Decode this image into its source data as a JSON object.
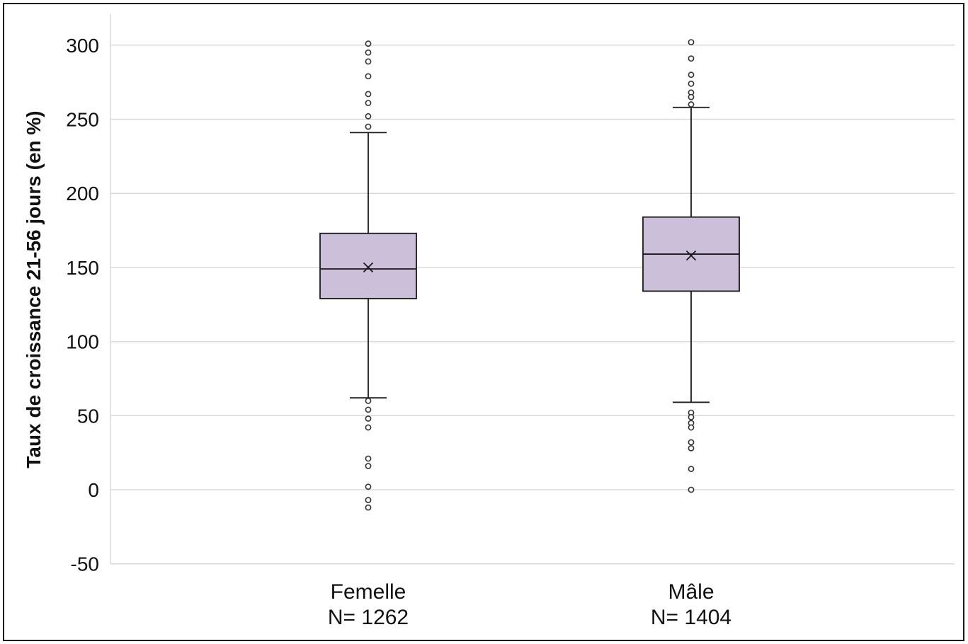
{
  "chart_data": {
    "type": "boxplot",
    "title": "",
    "ylabel": "Taux de croissance 21-56 jours (en %)",
    "xlabel": "",
    "ylim": [
      -50,
      310
    ],
    "yticks": [
      300,
      250,
      200,
      150,
      100,
      50,
      0,
      -50
    ],
    "grid": true,
    "box_color": "#cbbfda",
    "line_color": "#1a1a1a",
    "grid_color": "#d9d9d9",
    "categories": [
      {
        "name": "Femelle",
        "n_label": "N= 1262",
        "whisker_low": 62,
        "q1": 129,
        "median": 149,
        "mean": 150,
        "q3": 173,
        "whisker_high": 241,
        "outliers": [
          301,
          295,
          289,
          279,
          267,
          261,
          252,
          245,
          60,
          54,
          48,
          42,
          21,
          16,
          2,
          -7,
          -12
        ]
      },
      {
        "name": "Mâle",
        "n_label": "N= 1404",
        "whisker_low": 59,
        "q1": 134,
        "median": 159,
        "mean": 158,
        "q3": 184,
        "whisker_high": 258,
        "outliers": [
          302,
          291,
          280,
          274,
          268,
          265,
          260,
          52,
          49,
          45,
          42,
          32,
          28,
          14,
          0
        ]
      }
    ]
  }
}
